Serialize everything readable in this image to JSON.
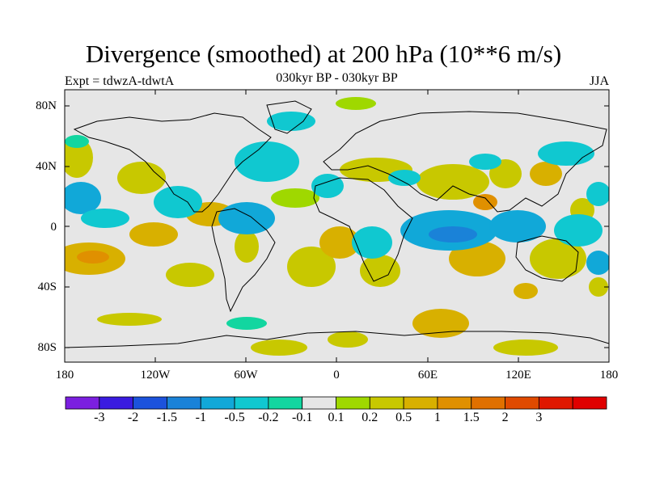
{
  "title": "Divergence (smoothed) at 200 hPa (10**6 m/s)",
  "experiment": "Expt = tdwzA-tdwtA",
  "subtitle": "030kyr BP - 030kyr BP",
  "season": "JJA",
  "lat_labels": [
    "80N",
    "40N",
    "0",
    "40S",
    "80S"
  ],
  "lon_labels": [
    "180",
    "120W",
    "60W",
    "0",
    "60E",
    "120E",
    "180"
  ],
  "colorbar": {
    "labels": [
      "-3",
      "-2",
      "-1.5",
      "-1",
      "-0.5",
      "-0.2",
      "-0.1",
      "0.1",
      "0.2",
      "0.5",
      "1",
      "1.5",
      "2",
      "3"
    ],
    "colors": [
      "#7b1fe0",
      "#3a1be0",
      "#1c52dc",
      "#1a82d8",
      "#11a8d8",
      "#10c8d0",
      "#12d6a0",
      "#e6e6e6",
      "#9fd800",
      "#c8c800",
      "#d8b000",
      "#e09000",
      "#e07000",
      "#e04a00",
      "#e01800",
      "#e00000"
    ]
  },
  "map_colors": {
    "background": "#e6e6e6",
    "coast": "#000000"
  }
}
